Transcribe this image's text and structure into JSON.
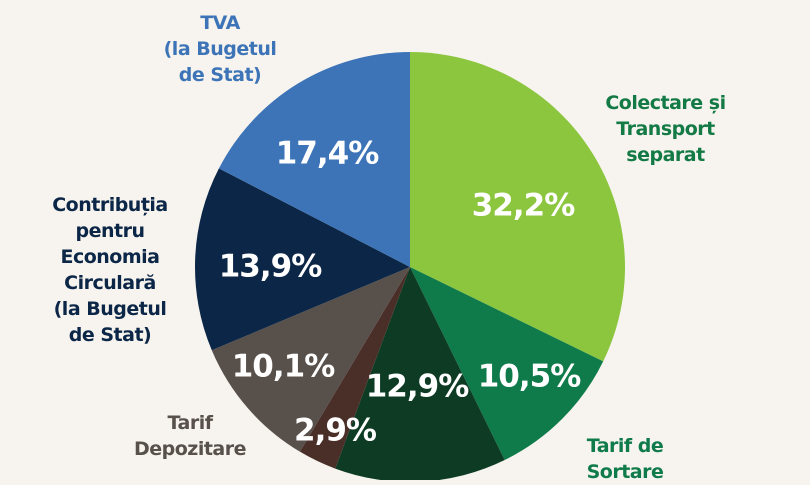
{
  "chart_data": {
    "type": "pie",
    "title": "",
    "start_angle_deg": 0,
    "direction": "clockwise",
    "slices": [
      {
        "label": [
          "Colectare și",
          "Transport",
          "separat"
        ],
        "value": 32.2,
        "value_label": "32,2%",
        "color": "#8cc63f",
        "label_color": "#137a45"
      },
      {
        "label": [
          "Tarif de",
          "Sortare"
        ],
        "value": 10.5,
        "value_label": "10,5%",
        "color": "#0f7a4a",
        "label_color": "#0f7a4a"
      },
      {
        "label": [],
        "value": 12.9,
        "value_label": "12,9%",
        "color": "#0d3b23",
        "label_color": "#0d3b23"
      },
      {
        "label": [],
        "value": 2.9,
        "value_label": "2,9%",
        "color": "#4a2e28",
        "label_color": "#4a2e28"
      },
      {
        "label": [
          "Tarif",
          "Depozitare"
        ],
        "value": 10.1,
        "value_label": "10,1%",
        "color": "#57504b",
        "label_color": "#57504b"
      },
      {
        "label": [
          "Contribuția",
          "pentru",
          "Economia",
          "Circulară",
          "(la Bugetul",
          "de Stat)"
        ],
        "value": 13.9,
        "value_label": "13,9%",
        "color": "#0b2646",
        "label_color": "#0b2646"
      },
      {
        "label": [
          "TVA",
          "(la Bugetul",
          "de Stat)"
        ],
        "value": 17.4,
        "value_label": "17,4%",
        "color": "#3d74b7",
        "label_color": "#3d74b7"
      }
    ]
  }
}
